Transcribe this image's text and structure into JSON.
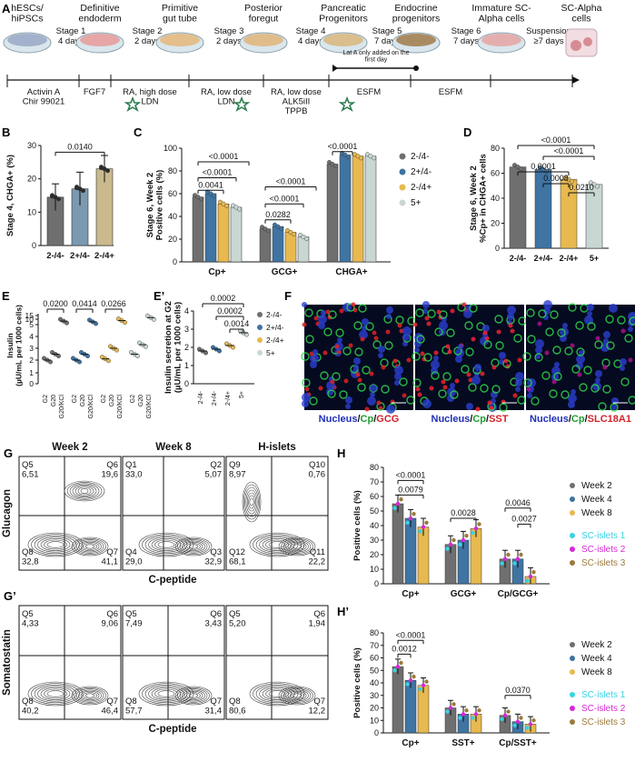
{
  "panel_letters": {
    "A": "A",
    "B": "B",
    "C": "C",
    "D": "D",
    "E": "E",
    "E2": "E’",
    "F": "F",
    "G": "G",
    "G2": "G’",
    "H": "H",
    "H2": "H’"
  },
  "protocol": {
    "stages": [
      {
        "name": "hESCs/\nhiPSCs",
        "stage": "Stage 1",
        "days": "4 days",
        "treatment": "Activin A\nChir 99021"
      },
      {
        "name": "Definitive\nendoderm",
        "stage": "Stage 2",
        "days": "2 days",
        "treatment": "FGF7"
      },
      {
        "name": "Primitive\ngut tube",
        "stage": "Stage 3",
        "days": "2 days",
        "treatment": "RA, high dose\nLDN"
      },
      {
        "name": "Posterior\nforegut",
        "stage": "Stage 4",
        "days": "4 days",
        "treatment": "RA, low dose\nLDN"
      },
      {
        "name": "Pancreatic\nProgenitors",
        "stage": "Stage 5",
        "days": "7 days",
        "treatment": "RA, low dose\nALK5iII\nTPPB"
      },
      {
        "name": "Endocrine\nprogenitors",
        "stage": "Stage 6",
        "days": "7 days",
        "treatment": "ESFM"
      },
      {
        "name": "Immature SC-\nAlpha cells",
        "stage": "Suspension",
        "days": "≥7 days",
        "treatment": "ESFM"
      },
      {
        "name": "SC-Alpha\ncells",
        "stage": "",
        "days": "",
        "treatment": ""
      }
    ],
    "lat_note": "Lat A only added on the\nfirst day"
  },
  "colors": {
    "g1": "#6f6f6f",
    "g2": "#3f74a3",
    "g3": "#e7b94f",
    "g4": "#c9d7d3",
    "tan": "#c9b98c",
    "cyan": "#39d2e6",
    "magenta": "#d62ad6",
    "brown": "#9b7a3c"
  },
  "chart_data": [
    {
      "id": "B",
      "type": "bar",
      "ylabel": "Stage 4, CHGA+ (%)",
      "categories": [
        "2-/4-",
        "2+/4-",
        "2-/4+"
      ],
      "values": [
        14.5,
        17,
        23
      ],
      "errors": [
        4,
        5,
        4
      ],
      "ylim": [
        0,
        30
      ],
      "yticks": [
        0,
        10,
        20,
        30
      ],
      "annotations": [
        {
          "text": "0.0140"
        }
      ]
    },
    {
      "id": "C",
      "type": "bar",
      "ylabel": "Stage 6, Week 2\nPositive cells (%)",
      "groups": [
        "Cp+",
        "GCG+",
        "CHGA+"
      ],
      "series": [
        {
          "name": "2-/4-",
          "values": [
            57,
            29,
            86
          ]
        },
        {
          "name": "2+/4-",
          "values": [
            60,
            31,
            94
          ]
        },
        {
          "name": "2-/4+",
          "values": [
            51,
            26,
            93
          ]
        },
        {
          "name": "5+",
          "values": [
            48,
            22,
            93
          ]
        }
      ],
      "ylim": [
        0,
        100
      ],
      "yticks": [
        0,
        20,
        40,
        60,
        80,
        100
      ],
      "annotations": [
        "0.0041",
        "<0.0001",
        "<0.0001",
        "0.0282",
        "<0.0001",
        "<0.0001",
        "<0.0001"
      ]
    },
    {
      "id": "D",
      "type": "bar",
      "ylabel": "Stage 6, Week 2\n%Cp+ in CHGA+ cells",
      "categories": [
        "2-/4-",
        "2+/4-",
        "2-/4+",
        "5+"
      ],
      "values": [
        65,
        63,
        55,
        51
      ],
      "ylim": [
        0,
        80
      ],
      "yticks": [
        0,
        20,
        40,
        60,
        80
      ],
      "annotations": [
        "<0.0001",
        "<0.0001",
        "0.0001",
        "0.0008",
        "0.0210"
      ]
    },
    {
      "id": "E",
      "type": "scatter",
      "ylabel": "Insulin\n(µU/mL per 1000 cells)",
      "categories": [
        "G2",
        "G20",
        "G20/KCl"
      ],
      "series": [
        {
          "name": "2-/4-",
          "values": [
            2,
            2.5,
            8.5
          ]
        },
        {
          "name": "2+/4-",
          "values": [
            2,
            2.5,
            7.8
          ]
        },
        {
          "name": "2-/4+",
          "values": [
            2.1,
            3,
            9
          ]
        },
        {
          "name": "5+",
          "values": [
            2.5,
            3.3,
            12
          ]
        }
      ],
      "yticks": [
        "0",
        "1",
        "2",
        "3",
        "4",
        "5",
        "10",
        "15"
      ],
      "annotations": [
        "0.0200",
        "0.0414",
        "0.0266"
      ]
    },
    {
      "id": "E2",
      "type": "scatter",
      "ylabel": "Insulin secretion at G2\n(µU/mL per 1000 cells)",
      "categories": [
        "2-/4-",
        "2+/4-",
        "2-/4+",
        "5+"
      ],
      "values": [
        1.8,
        1.9,
        2.1,
        2.8
      ],
      "yticks": [
        0,
        1,
        2,
        3,
        4
      ],
      "annotations": [
        "0.0002",
        "0.0002",
        "0.0014"
      ],
      "legend": [
        "2-/4-",
        "2+/4-",
        "2-/4+",
        "5+"
      ]
    },
    {
      "id": "H",
      "type": "bar",
      "ylabel": "Positive cells (%)",
      "groups": [
        "Cp+",
        "GCG+",
        "Cp/GCG+"
      ],
      "series": [
        {
          "name": "Week 2",
          "values": [
            55,
            27,
            17
          ]
        },
        {
          "name": "Week 4",
          "values": [
            45,
            30,
            17
          ]
        },
        {
          "name": "Week 8",
          "values": [
            39,
            38,
            5
          ]
        }
      ],
      "ylim": [
        0,
        80
      ],
      "yticks": [
        0,
        10,
        20,
        30,
        40,
        50,
        60,
        70,
        80
      ],
      "annotations": [
        "<0.0001",
        "0.0079",
        "0.0028",
        "0.0046",
        "0.0027"
      ],
      "legend": [
        "Week 2",
        "Week 4",
        "Week 8",
        "SC-islets 1",
        "SC-islets 2",
        "SC-islets 3"
      ]
    },
    {
      "id": "H2",
      "type": "bar",
      "ylabel": "Positive cells (%)",
      "groups": [
        "Cp+",
        "SST+",
        "Cp/SST+"
      ],
      "series": [
        {
          "name": "Week 2",
          "values": [
            53,
            20,
            14
          ]
        },
        {
          "name": "Week 4",
          "values": [
            42,
            15,
            9
          ]
        },
        {
          "name": "Week 8",
          "values": [
            38,
            15,
            7
          ]
        }
      ],
      "ylim": [
        0,
        80
      ],
      "yticks": [
        0,
        10,
        20,
        30,
        40,
        50,
        60,
        70,
        80
      ],
      "annotations": [
        "<0.0001",
        "0.0012",
        "0.0370"
      ],
      "legend": [
        "Week 2",
        "Week 4",
        "Week 8",
        "SC-islets 1",
        "SC-islets 2",
        "SC-islets 3"
      ]
    }
  ],
  "flow": {
    "G": {
      "cols": [
        "Week 2",
        "Week 8",
        "H-islets"
      ],
      "ylabel": "Glucagon",
      "xlabel": "C-peptide",
      "quads": [
        [
          [
            "Q5",
            "6,51"
          ],
          [
            "Q6",
            "19,6"
          ],
          [
            "Q8",
            "32,8"
          ],
          [
            "Q7",
            "41,1"
          ]
        ],
        [
          [
            "Q1",
            "33,0"
          ],
          [
            "Q2",
            "5,07"
          ],
          [
            "Q4",
            "29,0"
          ],
          [
            "Q3",
            "32,9"
          ]
        ],
        [
          [
            "Q9",
            "8,97"
          ],
          [
            "Q10",
            "0,76"
          ],
          [
            "Q12",
            "68,1"
          ],
          [
            "Q11",
            "22,2"
          ]
        ]
      ]
    },
    "G2": {
      "ylabel": "Somatostatin",
      "xlabel": "C-peptide",
      "quads": [
        [
          [
            "Q5",
            "4,33"
          ],
          [
            "Q6",
            "9,06"
          ],
          [
            "Q8",
            "40,2"
          ],
          [
            "Q7",
            "46,4"
          ]
        ],
        [
          [
            "Q5",
            "7,49"
          ],
          [
            "Q6",
            "3,43"
          ],
          [
            "Q8",
            "57,7"
          ],
          [
            "Q7",
            "31,4"
          ]
        ],
        [
          [
            "Q5",
            "5,20"
          ],
          [
            "Q6",
            "1,94"
          ],
          [
            "Q8",
            "80,6"
          ],
          [
            "Q7",
            "12,2"
          ]
        ]
      ]
    }
  },
  "micro": [
    {
      "a": "Nucleus",
      "b": "Cp",
      "c": "GCG"
    },
    {
      "a": "Nucleus",
      "b": "Cp",
      "c": "SST"
    },
    {
      "a": "Nucleus",
      "b": "Cp",
      "c": "SLC18A1"
    }
  ]
}
